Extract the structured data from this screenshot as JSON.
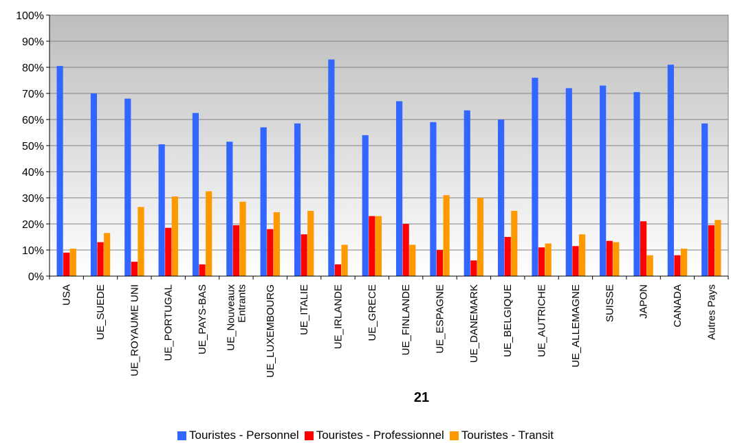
{
  "chart_data": {
    "type": "bar",
    "categories": [
      "USA",
      "UE_SUEDE",
      "UE_ROYAUME UNI",
      "UE_PORTUGAL",
      "UE_PAYS-BAS",
      "UE_Nouveaux Entrants",
      "UE_LUXEMBOURG",
      "UE_ITALIE",
      "UE_IRLANDE",
      "UE_GRECE",
      "UE_FINLANDE",
      "UE_ESPAGNE",
      "UE_DANEMARK",
      "UE_BELGIQUE",
      "UE_AUTRICHE",
      "UE_ALLEMAGNE",
      "SUISSE",
      "JAPON",
      "CANADA",
      "Autres Pays"
    ],
    "series": [
      {
        "name": "Touristes - Personnel",
        "color": "#3366ff",
        "values": [
          80.5,
          70,
          68,
          50.5,
          62.5,
          51.5,
          57,
          58.5,
          83,
          54,
          67,
          59,
          63.5,
          60,
          76,
          72,
          73,
          70.5,
          81,
          58.5
        ]
      },
      {
        "name": "Touristes - Professionnel",
        "color": "#ff0000",
        "values": [
          9,
          13,
          5.5,
          18.5,
          4.5,
          19.5,
          18,
          16,
          4.5,
          23,
          20,
          10,
          6,
          15,
          11,
          11.5,
          13.5,
          21,
          8,
          19.5
        ]
      },
      {
        "name": "Touristes - Transit",
        "color": "#ff9900",
        "values": [
          10.5,
          16.5,
          26.5,
          30.5,
          32.5,
          28.5,
          24.5,
          25,
          12,
          23,
          12,
          31,
          30,
          25,
          12.5,
          16,
          13,
          8,
          10.5,
          21.5
        ]
      }
    ],
    "yticks": [
      "0%",
      "10%",
      "20%",
      "30%",
      "40%",
      "50%",
      "60%",
      "70%",
      "80%",
      "90%",
      "100%"
    ],
    "ylim": [
      0,
      100
    ],
    "grid": true,
    "legend_position": "bottom"
  },
  "page_number": "21"
}
